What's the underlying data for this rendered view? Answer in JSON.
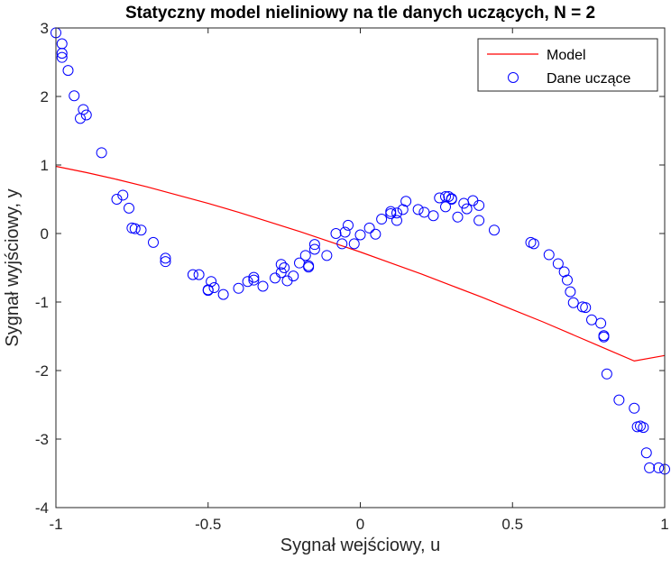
{
  "chart_data": {
    "type": "line+scatter",
    "title": "Statyczny model nieliniowy na tle danych uczących, N = 2",
    "xlabel": "Sygnał wejściowy, u",
    "ylabel": "Sygnał wyjściowy, y",
    "xlim": [
      -1,
      1
    ],
    "ylim": [
      -4,
      3
    ],
    "xticks": [
      -1,
      -0.5,
      0,
      0.5,
      1
    ],
    "xtick_labels": [
      "-1",
      "-0.5",
      "0",
      "0.5",
      "1"
    ],
    "yticks": [
      -4,
      -3,
      -2,
      -1,
      0,
      1,
      2,
      3
    ],
    "ytick_labels": [
      "-4",
      "-3",
      "-2",
      "-1",
      "0",
      "1",
      "2",
      "3"
    ],
    "grid": false,
    "legend_position": "top-right",
    "colors": {
      "model": "#ff0000",
      "data": "#0000ff",
      "axes": "#262626"
    },
    "series": [
      {
        "name": "Model",
        "style": "line",
        "x": [
          -1.0,
          -0.9,
          -0.8,
          -0.7,
          -0.6,
          -0.5,
          -0.4,
          -0.3,
          -0.2,
          -0.1,
          0.0,
          0.1,
          0.2,
          0.3,
          0.4,
          0.5,
          0.6,
          0.7,
          0.8,
          0.9,
          1.0
        ],
        "y": [
          0.98,
          0.89,
          0.79,
          0.68,
          0.56,
          0.44,
          0.31,
          0.17,
          0.03,
          -0.12,
          -0.27,
          -0.43,
          -0.59,
          -0.76,
          -0.93,
          -1.11,
          -1.29,
          -1.48,
          -1.67,
          -1.86,
          -1.78
        ]
      },
      {
        "name": "Dane uczące",
        "style": "markers",
        "x": [
          -1.0,
          -0.98,
          -0.98,
          -0.98,
          -0.96,
          -0.94,
          -0.92,
          -0.91,
          -0.9,
          -0.85,
          -0.8,
          -0.78,
          -0.76,
          -0.75,
          -0.74,
          -0.72,
          -0.68,
          -0.64,
          -0.64,
          -0.55,
          -0.53,
          -0.5,
          -0.5,
          -0.49,
          -0.48,
          -0.45,
          -0.4,
          -0.37,
          -0.35,
          -0.35,
          -0.32,
          -0.28,
          -0.26,
          -0.26,
          -0.25,
          -0.24,
          -0.22,
          -0.2,
          -0.18,
          -0.17,
          -0.17,
          -0.15,
          -0.15,
          -0.11,
          -0.08,
          -0.06,
          -0.05,
          -0.04,
          -0.02,
          0.0,
          0.03,
          0.05,
          0.07,
          0.1,
          0.1,
          0.12,
          0.12,
          0.14,
          0.15,
          0.19,
          0.21,
          0.24,
          0.26,
          0.28,
          0.28,
          0.29,
          0.3,
          0.3,
          0.32,
          0.34,
          0.35,
          0.37,
          0.39,
          0.39,
          0.44,
          0.56,
          0.57,
          0.62,
          0.65,
          0.67,
          0.68,
          0.69,
          0.7,
          0.73,
          0.74,
          0.76,
          0.79,
          0.8,
          0.8,
          0.81,
          0.85,
          0.9,
          0.91,
          0.92,
          0.93,
          0.94,
          0.95,
          0.98,
          1.0
        ],
        "y": [
          2.93,
          2.77,
          2.63,
          2.57,
          2.38,
          2.01,
          1.68,
          1.81,
          1.73,
          1.18,
          0.5,
          0.56,
          0.37,
          0.08,
          0.07,
          0.05,
          -0.13,
          -0.36,
          -0.41,
          -0.6,
          -0.6,
          -0.82,
          -0.83,
          -0.7,
          -0.79,
          -0.89,
          -0.8,
          -0.7,
          -0.68,
          -0.64,
          -0.77,
          -0.65,
          -0.45,
          -0.57,
          -0.5,
          -0.69,
          -0.62,
          -0.43,
          -0.32,
          -0.47,
          -0.49,
          -0.16,
          -0.23,
          -0.32,
          0.0,
          -0.15,
          0.02,
          0.12,
          -0.15,
          -0.02,
          0.08,
          -0.01,
          0.21,
          0.29,
          0.32,
          0.19,
          0.3,
          0.35,
          0.47,
          0.35,
          0.31,
          0.26,
          0.52,
          0.39,
          0.54,
          0.54,
          0.5,
          0.51,
          0.24,
          0.44,
          0.36,
          0.48,
          0.41,
          0.19,
          0.05,
          -0.13,
          -0.15,
          -0.31,
          -0.44,
          -0.56,
          -0.68,
          -0.85,
          -1.01,
          -1.07,
          -1.08,
          -1.26,
          -1.31,
          -1.49,
          -1.51,
          -2.05,
          -2.43,
          -2.55,
          -2.82,
          -2.81,
          -2.83,
          -3.2,
          -3.42,
          -3.42,
          -3.44
        ]
      }
    ]
  }
}
